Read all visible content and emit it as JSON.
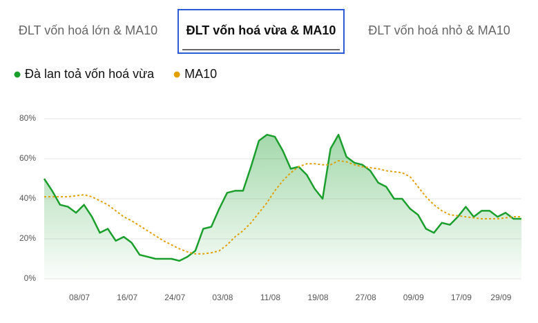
{
  "tabs": [
    {
      "label": "ĐLT vốn hoá lớn & MA10",
      "active": false
    },
    {
      "label": "ĐLT vốn hoá vừa & MA10",
      "active": true
    },
    {
      "label": "ĐLT vốn hoá nhỏ & MA10",
      "active": false
    }
  ],
  "chart_data": {
    "type": "line",
    "categories": [
      null,
      null,
      null,
      null,
      "08/07",
      null,
      null,
      null,
      null,
      null,
      "16/07",
      null,
      null,
      null,
      null,
      null,
      "24/07",
      null,
      null,
      null,
      null,
      null,
      "03/08",
      null,
      null,
      null,
      null,
      null,
      "11/08",
      null,
      null,
      null,
      null,
      null,
      "19/08",
      null,
      null,
      null,
      null,
      null,
      "27/08",
      null,
      null,
      null,
      null,
      null,
      "09/09",
      null,
      null,
      null,
      null,
      null,
      "17/09",
      null,
      null,
      null,
      null,
      "29/09",
      null,
      null,
      null
    ],
    "series": [
      {
        "name": "Đà lan toả vốn hoá vừa",
        "color": "#1a9e2c",
        "area": true,
        "dashed": false,
        "values": [
          50,
          44,
          37,
          36,
          33,
          37,
          31,
          23,
          25,
          19,
          21,
          18,
          12,
          11,
          10,
          10,
          10,
          9,
          11,
          14,
          25,
          26,
          35,
          43,
          44,
          44,
          56,
          69,
          72,
          71,
          64,
          55,
          56,
          52,
          45,
          40,
          65,
          72,
          61,
          58,
          57,
          54,
          48,
          46,
          40,
          40,
          35,
          32,
          25,
          23,
          28,
          27,
          31,
          36,
          31,
          34,
          34,
          31,
          33,
          30,
          30
        ]
      },
      {
        "name": "MA10",
        "color": "#e0a000",
        "area": false,
        "dashed": true,
        "values": [
          41,
          41,
          41,
          41,
          41.5,
          42,
          41,
          39,
          37,
          34,
          31,
          29,
          26.5,
          24,
          21.5,
          19,
          17,
          15,
          13.5,
          12.5,
          12.5,
          13,
          14,
          17,
          21,
          24,
          28,
          33,
          38,
          44,
          49,
          53,
          56,
          57.5,
          57.5,
          57,
          57,
          59,
          58.5,
          57,
          56,
          55.5,
          55,
          54,
          53.5,
          53,
          51,
          46,
          41,
          37,
          34,
          32,
          31.5,
          31,
          30.5,
          30,
          30,
          30,
          30.5,
          31,
          31
        ]
      }
    ],
    "ylim": [
      0,
      80
    ],
    "yticks": [
      {
        "value": 0,
        "label": "0%"
      },
      {
        "value": 20,
        "label": "20%"
      },
      {
        "value": 40,
        "label": "40%"
      },
      {
        "value": 60,
        "label": "60%"
      },
      {
        "value": 80,
        "label": "80%"
      }
    ],
    "grid": true
  }
}
